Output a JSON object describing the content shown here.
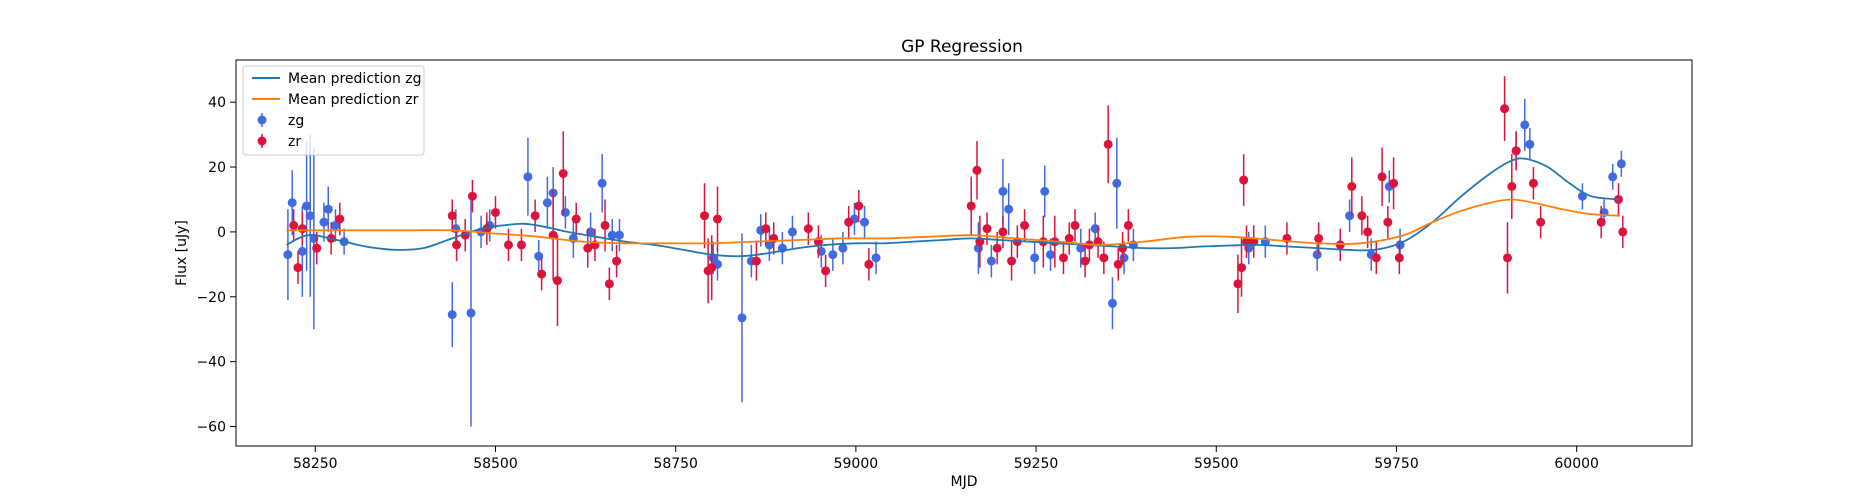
{
  "chart_data": {
    "type": "scatter",
    "title": "GP Regression",
    "xlabel": "MJD",
    "ylabel": "Flux [uJy]",
    "xlim": [
      58140,
      60160
    ],
    "ylim": [
      -66,
      53
    ],
    "xticks": [
      58250,
      58500,
      58750,
      59000,
      59250,
      59500,
      59750,
      60000
    ],
    "yticks": [
      -60,
      -40,
      -20,
      0,
      20,
      40
    ],
    "grid": false,
    "legend": {
      "location": "upper-left",
      "entries": [
        "Mean prediction zg",
        "Mean prediction zr",
        "zg",
        "zr"
      ]
    },
    "series": [
      {
        "name": "Mean prediction zg",
        "kind": "line",
        "color": "#1f77b4",
        "x": [
          58210,
          58240,
          58280,
          58320,
          58360,
          58400,
          58440,
          58480,
          58510,
          58540,
          58570,
          58600,
          58640,
          58680,
          58720,
          58760,
          58800,
          58840,
          58880,
          58920,
          58960,
          59000,
          59040,
          59080,
          59120,
          59160,
          59200,
          59240,
          59280,
          59320,
          59360,
          59400,
          59440,
          59480,
          59520,
          59560,
          59600,
          59640,
          59680,
          59720,
          59760,
          59800,
          59840,
          59880,
          59910,
          59930,
          59960,
          59990,
          60020,
          60060
        ],
        "y": [
          -4,
          -1,
          -2.5,
          -4.5,
          -5.5,
          -5,
          -2,
          1,
          2,
          2.5,
          1.5,
          0,
          -1.5,
          -3,
          -4,
          -5.5,
          -7,
          -7.5,
          -6.5,
          -5,
          -4,
          -3.5,
          -3.5,
          -3,
          -2.5,
          -2,
          -2.5,
          -3,
          -3.5,
          -4,
          -4.5,
          -5,
          -5,
          -4.5,
          -4.2,
          -4,
          -4.5,
          -5,
          -5.5,
          -5.5,
          -3,
          3,
          11,
          18,
          22,
          22.5,
          20,
          15,
          11,
          10
        ]
      },
      {
        "name": "Mean prediction zr",
        "kind": "line",
        "color": "#ff7f0e",
        "x": [
          58210,
          58260,
          58320,
          58380,
          58440,
          58500,
          58560,
          58620,
          58680,
          58740,
          58800,
          58860,
          58920,
          58980,
          59040,
          59100,
          59160,
          59220,
          59280,
          59340,
          59400,
          59460,
          59520,
          59580,
          59640,
          59700,
          59760,
          59800,
          59840,
          59880,
          59910,
          59940,
          59980,
          60020,
          60060
        ],
        "y": [
          0.5,
          0.5,
          0.5,
          0.5,
          0.5,
          -0.5,
          -1.5,
          -3,
          -3.5,
          -3.5,
          -3.5,
          -3,
          -2.5,
          -2,
          -2,
          -1.5,
          -1,
          -2,
          -3,
          -4,
          -3,
          -1.5,
          -1.5,
          -2.5,
          -3.5,
          -3.5,
          -1,
          3,
          6.5,
          9,
          10,
          9,
          7,
          5.5,
          5
        ]
      },
      {
        "name": "zg",
        "kind": "errorbar",
        "color": "#4169e1",
        "x": [
          58212,
          58218,
          58232,
          58238,
          58243,
          58248,
          58262,
          58268,
          58278,
          58290,
          58440,
          58445,
          58466,
          58480,
          58492,
          58545,
          58560,
          58572,
          58580,
          58597,
          58608,
          58632,
          58648,
          58662,
          58672,
          58802,
          58808,
          58842,
          58855,
          58868,
          58880,
          58898,
          58912,
          58952,
          58968,
          58982,
          58998,
          59012,
          59028,
          59170,
          59188,
          59204,
          59212,
          59248,
          59262,
          59270,
          59312,
          59332,
          59356,
          59362,
          59372,
          59385,
          59545,
          59568,
          59640,
          59685,
          59715,
          59740,
          59755,
          59916,
          59928,
          59935,
          60008,
          60038,
          60050,
          60062
        ],
        "y": [
          -7,
          9,
          -6,
          8,
          5,
          -2,
          3,
          7,
          2,
          -3,
          -25.5,
          1,
          -25,
          0,
          2,
          17,
          -7.5,
          9,
          12,
          6,
          -2,
          0,
          15,
          -1,
          -1,
          -8,
          -10,
          -26.5,
          -9,
          0.5,
          -4,
          -5,
          0,
          -6,
          -7,
          -5,
          4,
          3,
          -8,
          -5,
          -9,
          12.5,
          7,
          -8,
          12.5,
          -7,
          -5,
          1,
          -22,
          15,
          -8,
          -4,
          -5,
          -3,
          -7,
          5,
          -7,
          14,
          -4,
          25,
          33,
          27,
          11,
          6,
          17,
          21
        ],
        "err": [
          14,
          10,
          14,
          20,
          25,
          28,
          6,
          7,
          5,
          4,
          10,
          6,
          35,
          5,
          5,
          12,
          5,
          8,
          8,
          5,
          6,
          6,
          9,
          5,
          5,
          5,
          5,
          26,
          5,
          5,
          5,
          5,
          5,
          5,
          5,
          5,
          5,
          5,
          5,
          8,
          5,
          10,
          8,
          5,
          8,
          5,
          6,
          5,
          8,
          14,
          5,
          5,
          5,
          5,
          5,
          5,
          5,
          5,
          5,
          6,
          8,
          5,
          4,
          4,
          4,
          4
        ]
      },
      {
        "name": "zr",
        "kind": "errorbar",
        "color": "#dc143c",
        "x": [
          58220,
          58226,
          58232,
          58252,
          58272,
          58284,
          58440,
          58446,
          58458,
          58468,
          58488,
          58500,
          58518,
          58536,
          58555,
          58564,
          58580,
          58586,
          58594,
          58612,
          58628,
          58638,
          58652,
          58658,
          58668,
          58790,
          58795,
          58800,
          58808,
          58862,
          58875,
          58886,
          58934,
          58948,
          58958,
          58990,
          59004,
          59018,
          59160,
          59168,
          59172,
          59182,
          59196,
          59204,
          59216,
          59224,
          59234,
          59260,
          59276,
          59288,
          59296,
          59304,
          59318,
          59324,
          59336,
          59344,
          59350,
          59364,
          59370,
          59378,
          59530,
          59535,
          59538,
          59542,
          59552,
          59598,
          59642,
          59672,
          59688,
          59702,
          59710,
          59722,
          59730,
          59738,
          59746,
          59754,
          59900,
          59904,
          59910,
          59916,
          59940,
          59950,
          60034,
          60058,
          60064
        ],
        "y": [
          2,
          -11,
          1,
          -5,
          -2,
          4,
          5,
          -4,
          -1,
          11,
          1,
          6,
          -4,
          -4,
          5,
          -13,
          -1,
          -15,
          18,
          4,
          -5,
          -4,
          2,
          -16,
          -9,
          5,
          -12,
          -11,
          4,
          -9,
          1,
          -2,
          1,
          -3,
          -12,
          3,
          8,
          -10,
          8,
          19,
          -3,
          1,
          -5,
          0,
          -9,
          -3,
          2,
          -3,
          -3,
          -8,
          -2,
          2,
          -9,
          -4,
          -3,
          -8,
          27,
          -10,
          -5,
          2,
          -16,
          -11,
          16,
          -3,
          -3,
          -2,
          -2,
          -4,
          14,
          5,
          0,
          -8,
          17,
          3,
          15,
          -8,
          38,
          -8,
          14,
          25,
          15,
          3,
          3,
          10,
          0
        ],
        "err": [
          5,
          5,
          5,
          5,
          5,
          5,
          5,
          5,
          5,
          5,
          5,
          5,
          5,
          5,
          5,
          5,
          14,
          14,
          13,
          5,
          6,
          5,
          8,
          5,
          5,
          10,
          10,
          10,
          10,
          6,
          5,
          5,
          5,
          5,
          5,
          5,
          5,
          5,
          9,
          9,
          8,
          5,
          5,
          5,
          6,
          5,
          5,
          8,
          8,
          5,
          5,
          5,
          5,
          5,
          5,
          5,
          12,
          5,
          5,
          5,
          9,
          9,
          8,
          5,
          5,
          5,
          5,
          5,
          9,
          6,
          5,
          5,
          9,
          5,
          8,
          5,
          10,
          11,
          10,
          6,
          5,
          5,
          5,
          5,
          5
        ]
      }
    ]
  }
}
